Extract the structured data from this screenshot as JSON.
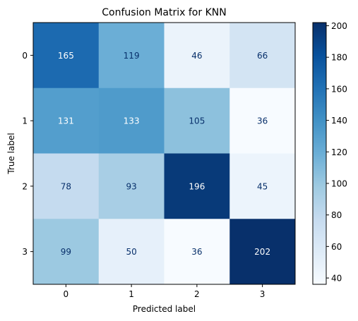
{
  "chart_data": {
    "type": "heatmap",
    "title": "Confusion Matrix for KNN",
    "xlabel": "Predicted label",
    "ylabel": "True label",
    "x_categories": [
      "0",
      "1",
      "2",
      "3"
    ],
    "y_categories": [
      "0",
      "1",
      "2",
      "3"
    ],
    "values": [
      [
        165,
        119,
        46,
        66
      ],
      [
        131,
        133,
        105,
        36
      ],
      [
        78,
        93,
        196,
        45
      ],
      [
        99,
        50,
        36,
        202
      ]
    ],
    "colormap": "Blues",
    "colorbar": {
      "min": 36,
      "max": 202,
      "ticks": [
        40,
        60,
        80,
        100,
        120,
        140,
        160,
        180,
        200
      ]
    },
    "text_color_light": "#ffffff",
    "text_color_dark": "#08306b",
    "grid": false
  }
}
